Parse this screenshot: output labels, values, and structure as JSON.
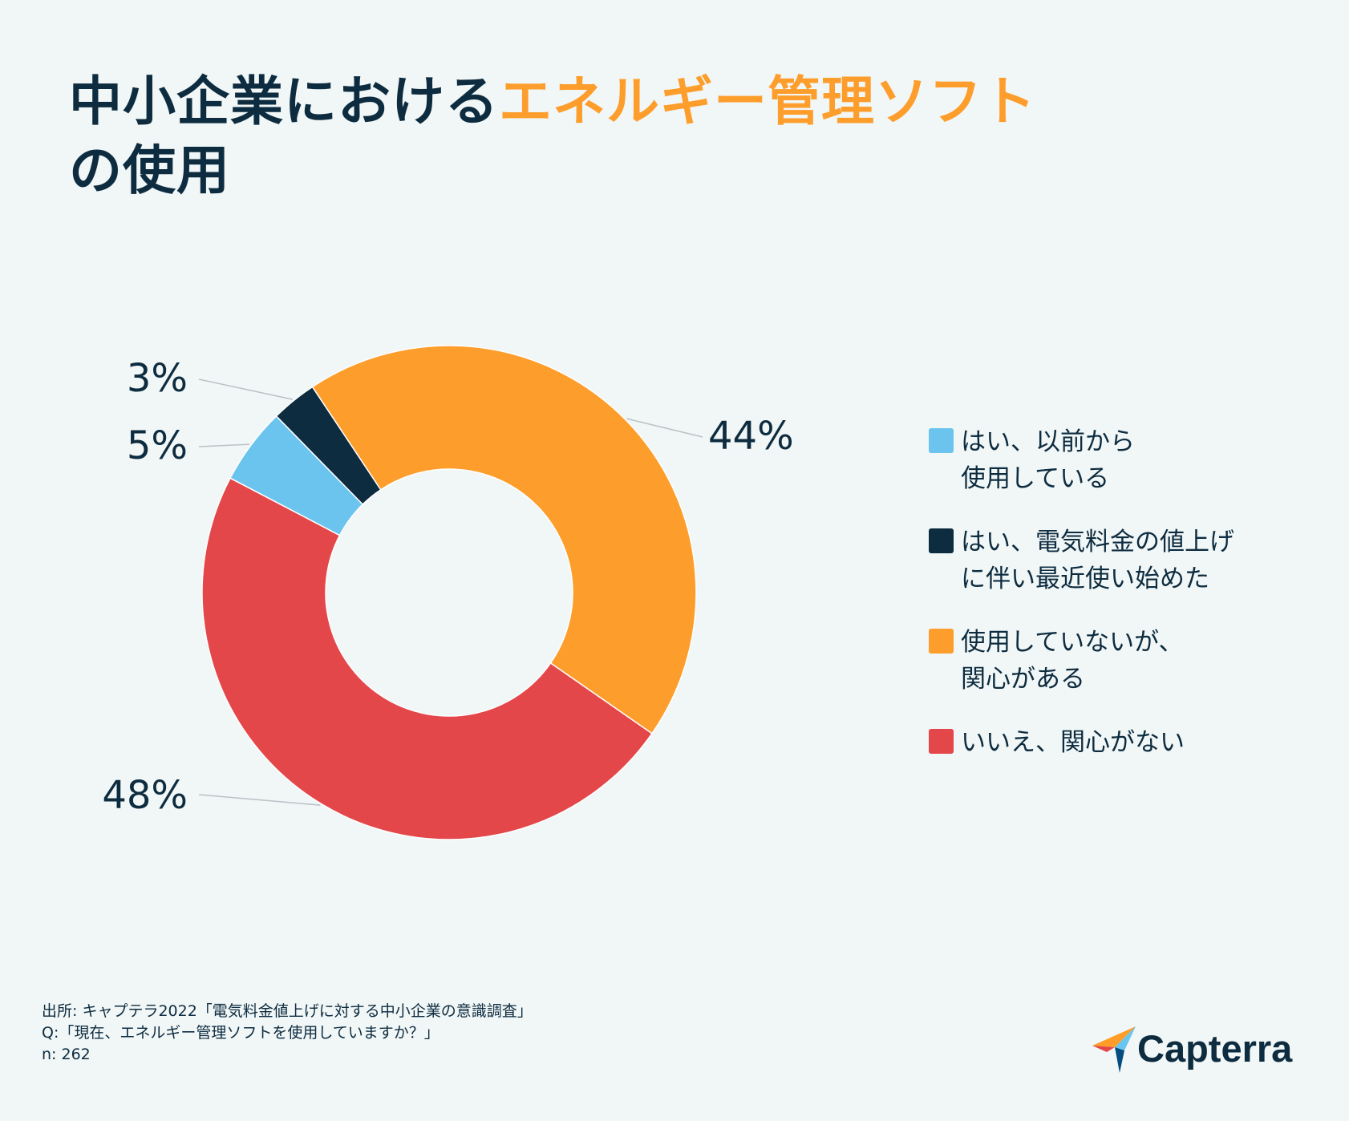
{
  "title": {
    "part1": "中小企業における",
    "part2_accent": "エネルギー管理ソフト",
    "part3": "の使用"
  },
  "colors": {
    "dark": "#0d2c40",
    "accent": "#fd9d2b",
    "blue": "#6bc4ee",
    "orange": "#fd9d2b",
    "red": "#e4474a",
    "background": "#f1f6f6"
  },
  "chart_data": {
    "type": "pie",
    "variant": "donut",
    "title": "中小企業におけるエネルギー管理ソフトの使用",
    "categories": [
      "はい、以前から使用している",
      "はい、電気料金の値上げに伴い最近使い始めた",
      "使用していないが、関心がある",
      "いいえ、関心がない"
    ],
    "values": [
      5,
      3,
      44,
      48
    ],
    "labels": [
      "5%",
      "3%",
      "44%",
      "48%"
    ],
    "colors": [
      "#6bc4ee",
      "#0d2c40",
      "#fd9d2b",
      "#e4474a"
    ],
    "legend_position": "right"
  },
  "legend": [
    {
      "line1": "はい、以前から",
      "line2": "使用している",
      "color": "#6bc4ee"
    },
    {
      "line1": "はい、電気料金の値上げ",
      "line2": "に伴い最近使い始めた",
      "color": "#0d2c40"
    },
    {
      "line1": "使用していないが、",
      "line2": "関心がある",
      "color": "#fd9d2b"
    },
    {
      "line1": "いいえ、関心がない",
      "line2": "",
      "color": "#e4474a"
    }
  ],
  "source": {
    "line1": "出所: キャプテラ2022「電気料金値上げに対する中小企業の意識調査」",
    "line2": "Q:「現在、エネルギー管理ソフトを使用していますか？」",
    "line3": "n: 262"
  },
  "logo": {
    "text": "Capterra",
    "icon": "capterra-arrow-icon"
  }
}
